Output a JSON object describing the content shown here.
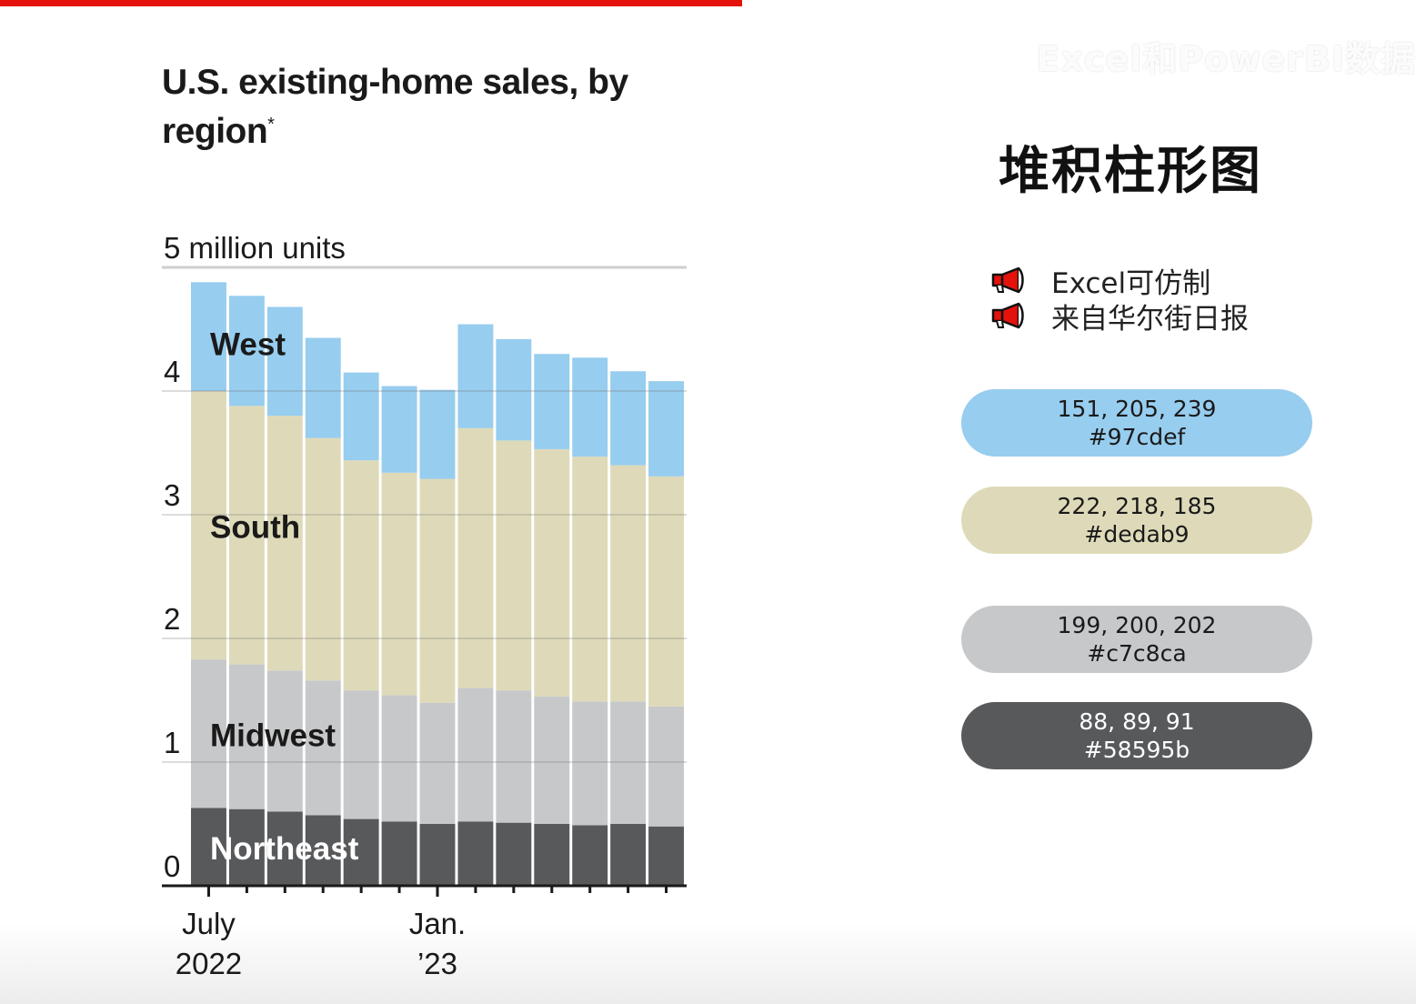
{
  "watermark": "Excel和PowerBI数据",
  "chart_title": "U.S. existing-home sales, by region",
  "chart_title_mark": "*",
  "right_title": "堆积柱形图",
  "notes": [
    {
      "icon": "megaphone-icon",
      "text": "Excel可仿制"
    },
    {
      "icon": "megaphone-icon",
      "text": "来自华尔街日报"
    }
  ],
  "swatches": [
    {
      "rgb": "151, 205, 239",
      "hex": "#97cdef",
      "color": "#97cdef",
      "text_color": "#1a1a1a"
    },
    {
      "rgb": "222, 218, 185",
      "hex": "#dedab9",
      "color": "#dedab9",
      "text_color": "#1a1a1a"
    },
    {
      "rgb": "199, 200, 202",
      "hex": "#c7c8ca",
      "color": "#c7c8ca",
      "text_color": "#1a1a1a"
    },
    {
      "rgb": "88, 89, 91",
      "hex": "#58595b",
      "color": "#58595b",
      "text_color": "#ffffff"
    }
  ],
  "chart_data": {
    "type": "bar",
    "stacked": true,
    "title": "U.S. existing-home sales, by region*",
    "unit_label": "5 million units",
    "ylim": [
      0,
      5
    ],
    "yticks": [
      0,
      1,
      2,
      3,
      4
    ],
    "grid": true,
    "legend": "inline labels",
    "months": [
      "2022-07",
      "2022-08",
      "2022-09",
      "2022-10",
      "2022-11",
      "2022-12",
      "2023-01",
      "2023-02",
      "2023-03",
      "2023-04",
      "2023-05",
      "2023-06",
      "2023-07"
    ],
    "x_tick_labels": [
      {
        "month": "2022-07",
        "line1": "July",
        "line2": "2022"
      },
      {
        "month": "2023-01",
        "line1": "Jan.",
        "line2": "’23"
      }
    ],
    "series": [
      {
        "name": "Northeast",
        "color": "#58595b",
        "label_color": "#ffffff",
        "values": [
          0.63,
          0.62,
          0.6,
          0.57,
          0.54,
          0.52,
          0.5,
          0.52,
          0.51,
          0.5,
          0.49,
          0.5,
          0.48
        ]
      },
      {
        "name": "Midwest",
        "color": "#c7c8ca",
        "label_color": "#1a1a1a",
        "values": [
          1.2,
          1.17,
          1.14,
          1.09,
          1.04,
          1.02,
          0.98,
          1.08,
          1.07,
          1.03,
          1.0,
          0.99,
          0.97
        ]
      },
      {
        "name": "South",
        "color": "#dedab9",
        "label_color": "#1a1a1a",
        "values": [
          2.17,
          2.09,
          2.06,
          1.96,
          1.86,
          1.8,
          1.81,
          2.1,
          2.02,
          2.0,
          1.98,
          1.91,
          1.86
        ]
      },
      {
        "name": "West",
        "color": "#97cdef",
        "label_color": "#1a1a1a",
        "values": [
          0.88,
          0.89,
          0.88,
          0.81,
          0.71,
          0.7,
          0.72,
          0.84,
          0.82,
          0.77,
          0.8,
          0.76,
          0.77
        ]
      }
    ]
  }
}
